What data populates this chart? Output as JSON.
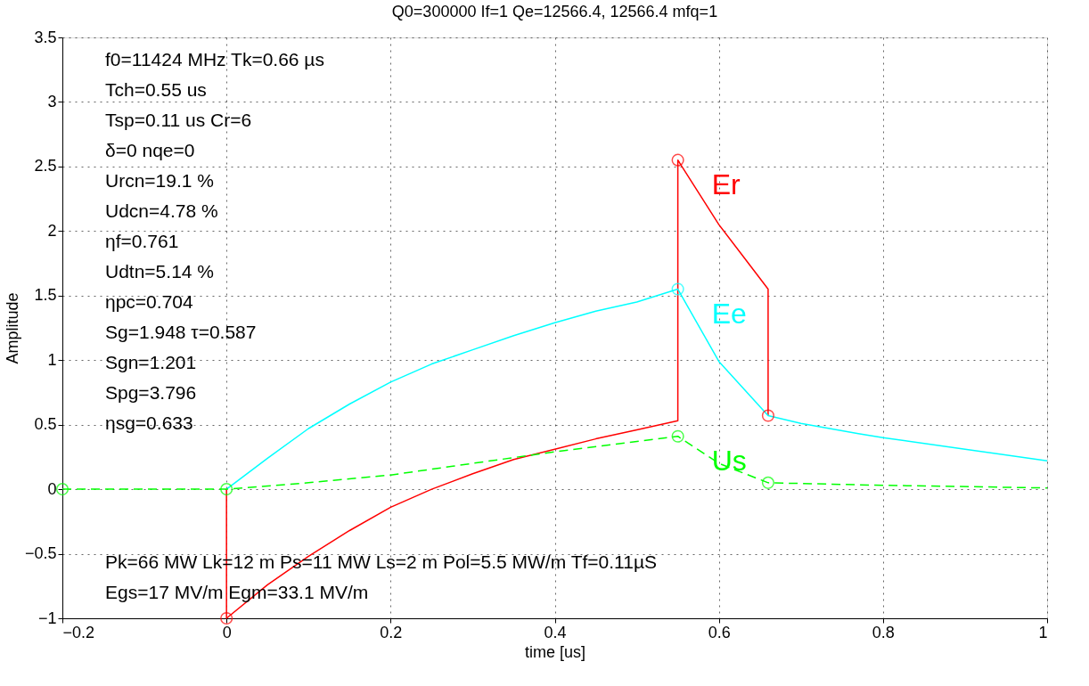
{
  "chart_data": {
    "type": "line",
    "title": "Q0=300000    If=1    Qe=12566.4, 12566.4  mfq=1",
    "xlabel": "time [us]",
    "ylabel": "Amplitude",
    "xlim": [
      -0.2,
      1
    ],
    "xticks": [
      -0.2,
      0,
      0.2,
      0.4,
      0.6,
      0.8,
      1
    ],
    "ylim": [
      -1,
      3.5
    ],
    "yticks": [
      -1,
      -0.5,
      0,
      0.5,
      1,
      1.5,
      2,
      2.5,
      3,
      3.5
    ],
    "grid": true,
    "series": [
      {
        "name": "Er",
        "color": "#ff0000",
        "x": [
          0,
          0,
          0.05,
          0.1,
          0.15,
          0.2,
          0.25,
          0.3,
          0.35,
          0.4,
          0.45,
          0.5,
          0.55,
          0.55,
          0.6,
          0.63,
          0.66,
          0.66
        ],
        "values": [
          0,
          -1,
          -0.74,
          -0.52,
          -0.32,
          -0.14,
          0.0,
          0.12,
          0.23,
          0.31,
          0.39,
          0.46,
          0.53,
          2.55,
          2.05,
          1.8,
          1.55,
          0.57
        ]
      },
      {
        "name": "Ee",
        "color": "#00ffff",
        "x": [
          0,
          0.05,
          0.1,
          0.15,
          0.2,
          0.25,
          0.3,
          0.35,
          0.4,
          0.45,
          0.5,
          0.55,
          0.6,
          0.66,
          0.7,
          0.77,
          0.8,
          0.9,
          1.0
        ],
        "values": [
          0,
          0.24,
          0.47,
          0.66,
          0.83,
          0.97,
          1.08,
          1.19,
          1.29,
          1.38,
          1.45,
          1.55,
          0.99,
          0.57,
          0.51,
          0.43,
          0.4,
          0.31,
          0.22
        ]
      },
      {
        "name": "Us",
        "color": "#00ff00",
        "line_style": "dashed",
        "x": [
          -0.2,
          0,
          0.1,
          0.2,
          0.3,
          0.4,
          0.55,
          0.6,
          0.66,
          0.8,
          1.0
        ],
        "values": [
          0,
          0,
          0.05,
          0.11,
          0.2,
          0.29,
          0.41,
          0.2,
          0.05,
          0.03,
          0.01
        ]
      },
      {
        "type": "scatter",
        "marker": "circle",
        "color": "#ff0000",
        "x": [
          0,
          0.55,
          0.66
        ],
        "values": [
          -1,
          2.55,
          0.57
        ]
      },
      {
        "type": "scatter",
        "marker": "circle",
        "color": "#00ffff",
        "x": [
          0.55
        ],
        "values": [
          1.55
        ]
      },
      {
        "type": "scatter",
        "marker": "circle",
        "color": "#00ff00",
        "x": [
          -0.2,
          0,
          0.55,
          0.66
        ],
        "values": [
          0,
          0,
          0.41,
          0.05
        ]
      }
    ],
    "annotations": [
      "f0=11424 MHz Tk=0.66 µs",
      "Tch=0.55 us",
      "Tsp=0.11 us   Cr=6",
      "δ=0  nqe=0",
      "Urcn=19.1 %",
      "Udcn=4.78 %",
      "ηf=0.761",
      "Udtn=5.14 %",
      "ηpc=0.704",
      "Sg=1.948  τ=0.587",
      "Sgn=1.201",
      "Spg=3.796",
      "ηsg=0.633",
      "Pk=66 MW Lk=12 m  Ps=11 MW  Ls=2 m  Pol=5.5 MW/m  Tf=0.11µS",
      "Egs=17 MV/m Egm=33.1 MV/m"
    ]
  }
}
